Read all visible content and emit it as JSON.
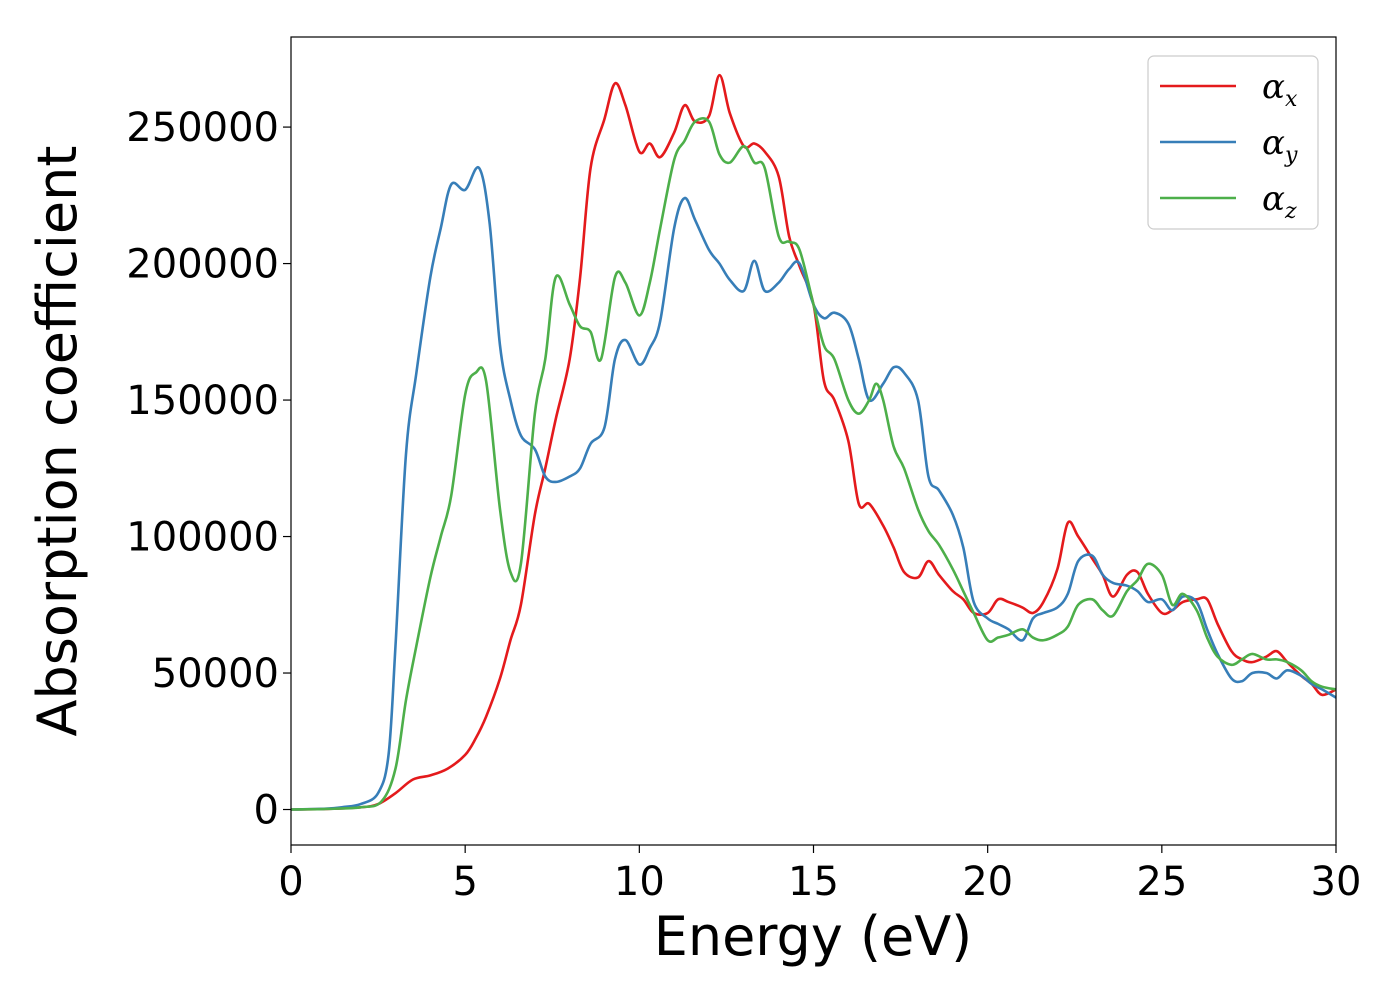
{
  "chart_data": {
    "type": "line",
    "title": "",
    "xlabel": "Energy (eV)",
    "ylabel": "Absorption coefficient",
    "xlim": [
      0,
      30
    ],
    "ylim": [
      -13000,
      283000
    ],
    "xticks": [
      0,
      5,
      10,
      15,
      20,
      25,
      30
    ],
    "yticks": [
      0,
      50000,
      100000,
      150000,
      200000,
      250000
    ],
    "grid": false,
    "legend_position": "top-right",
    "series": [
      {
        "name": "α",
        "subscript": "x",
        "color": "#e41a1c",
        "points": [
          [
            0,
            0
          ],
          [
            1,
            200
          ],
          [
            2,
            800
          ],
          [
            2.5,
            2000
          ],
          [
            3,
            6000
          ],
          [
            3.5,
            11000
          ],
          [
            4,
            12500
          ],
          [
            4.5,
            15000
          ],
          [
            5,
            20000
          ],
          [
            5.3,
            26000
          ],
          [
            5.6,
            34000
          ],
          [
            6,
            48000
          ],
          [
            6.3,
            62000
          ],
          [
            6.6,
            75000
          ],
          [
            7,
            108000
          ],
          [
            7.3,
            125000
          ],
          [
            7.6,
            143000
          ],
          [
            8,
            165000
          ],
          [
            8.3,
            195000
          ],
          [
            8.6,
            235000
          ],
          [
            9,
            253000
          ],
          [
            9.3,
            266000
          ],
          [
            9.6,
            258000
          ],
          [
            10,
            241000
          ],
          [
            10.3,
            244000
          ],
          [
            10.6,
            239000
          ],
          [
            11,
            248000
          ],
          [
            11.3,
            258000
          ],
          [
            11.6,
            252000
          ],
          [
            12,
            254000
          ],
          [
            12.3,
            269000
          ],
          [
            12.6,
            255000
          ],
          [
            13,
            243000
          ],
          [
            13.3,
            244000
          ],
          [
            13.6,
            241000
          ],
          [
            14,
            232000
          ],
          [
            14.3,
            210000
          ],
          [
            14.6,
            199000
          ],
          [
            15,
            185000
          ],
          [
            15.3,
            157000
          ],
          [
            15.6,
            150000
          ],
          [
            16,
            135000
          ],
          [
            16.3,
            112000
          ],
          [
            16.6,
            112000
          ],
          [
            17,
            104000
          ],
          [
            17.3,
            96000
          ],
          [
            17.6,
            87000
          ],
          [
            18,
            85000
          ],
          [
            18.3,
            91000
          ],
          [
            18.6,
            86000
          ],
          [
            19,
            80000
          ],
          [
            19.3,
            77000
          ],
          [
            19.6,
            72000
          ],
          [
            20,
            72000
          ],
          [
            20.3,
            77000
          ],
          [
            20.6,
            76000
          ],
          [
            21,
            74000
          ],
          [
            21.3,
            72000
          ],
          [
            21.6,
            76000
          ],
          [
            22,
            88000
          ],
          [
            22.3,
            105000
          ],
          [
            22.6,
            100000
          ],
          [
            23,
            92000
          ],
          [
            23.3,
            86000
          ],
          [
            23.6,
            78000
          ],
          [
            24,
            86000
          ],
          [
            24.3,
            87000
          ],
          [
            24.6,
            79000
          ],
          [
            25,
            72000
          ],
          [
            25.3,
            73000
          ],
          [
            25.6,
            76000
          ],
          [
            26,
            77000
          ],
          [
            26.3,
            77000
          ],
          [
            26.6,
            68000
          ],
          [
            27,
            58000
          ],
          [
            27.3,
            55000
          ],
          [
            27.6,
            54000
          ],
          [
            28,
            56000
          ],
          [
            28.3,
            58000
          ],
          [
            28.6,
            54000
          ],
          [
            29,
            49000
          ],
          [
            29.3,
            46000
          ],
          [
            29.6,
            42000
          ],
          [
            30,
            44000
          ]
        ]
      },
      {
        "name": "α",
        "subscript": "y",
        "color": "#377eb8",
        "points": [
          [
            0,
            0
          ],
          [
            1,
            300
          ],
          [
            1.5,
            900
          ],
          [
            2,
            2000
          ],
          [
            2.5,
            6000
          ],
          [
            2.8,
            20000
          ],
          [
            3,
            60000
          ],
          [
            3.3,
            130000
          ],
          [
            3.6,
            160000
          ],
          [
            4,
            195000
          ],
          [
            4.3,
            213000
          ],
          [
            4.6,
            229000
          ],
          [
            5,
            227000
          ],
          [
            5.4,
            235000
          ],
          [
            5.7,
            215000
          ],
          [
            6,
            170000
          ],
          [
            6.3,
            150000
          ],
          [
            6.6,
            137000
          ],
          [
            7,
            132000
          ],
          [
            7.3,
            122000
          ],
          [
            7.6,
            120000
          ],
          [
            8,
            122000
          ],
          [
            8.3,
            125000
          ],
          [
            8.6,
            134000
          ],
          [
            9,
            140000
          ],
          [
            9.3,
            165000
          ],
          [
            9.6,
            172000
          ],
          [
            10,
            163000
          ],
          [
            10.3,
            169000
          ],
          [
            10.6,
            179000
          ],
          [
            11,
            213000
          ],
          [
            11.3,
            224000
          ],
          [
            11.6,
            216000
          ],
          [
            12,
            205000
          ],
          [
            12.3,
            200000
          ],
          [
            12.6,
            194000
          ],
          [
            13,
            190000
          ],
          [
            13.3,
            201000
          ],
          [
            13.6,
            190000
          ],
          [
            14,
            193000
          ],
          [
            14.3,
            198000
          ],
          [
            14.6,
            200000
          ],
          [
            15,
            185000
          ],
          [
            15.3,
            180000
          ],
          [
            15.6,
            182000
          ],
          [
            16,
            178000
          ],
          [
            16.3,
            165000
          ],
          [
            16.6,
            150000
          ],
          [
            17,
            156000
          ],
          [
            17.3,
            162000
          ],
          [
            17.6,
            160000
          ],
          [
            18,
            150000
          ],
          [
            18.3,
            122000
          ],
          [
            18.6,
            117000
          ],
          [
            19,
            108000
          ],
          [
            19.3,
            96000
          ],
          [
            19.6,
            76000
          ],
          [
            20,
            70000
          ],
          [
            20.3,
            68000
          ],
          [
            20.6,
            66000
          ],
          [
            21,
            62000
          ],
          [
            21.3,
            70000
          ],
          [
            21.6,
            72000
          ],
          [
            22,
            74000
          ],
          [
            22.3,
            79000
          ],
          [
            22.6,
            91000
          ],
          [
            23,
            93000
          ],
          [
            23.3,
            86000
          ],
          [
            23.6,
            83000
          ],
          [
            24,
            82000
          ],
          [
            24.3,
            80000
          ],
          [
            24.6,
            76000
          ],
          [
            25,
            77000
          ],
          [
            25.3,
            73000
          ],
          [
            25.6,
            78000
          ],
          [
            26,
            76000
          ],
          [
            26.3,
            66000
          ],
          [
            26.6,
            57000
          ],
          [
            27,
            48000
          ],
          [
            27.3,
            47000
          ],
          [
            27.6,
            50000
          ],
          [
            28,
            50000
          ],
          [
            28.3,
            48000
          ],
          [
            28.6,
            51000
          ],
          [
            29,
            49000
          ],
          [
            29.3,
            46000
          ],
          [
            29.6,
            44000
          ],
          [
            30,
            41000
          ]
        ]
      },
      {
        "name": "α",
        "subscript": "z",
        "color": "#4daf4a",
        "points": [
          [
            0,
            0
          ],
          [
            1,
            200
          ],
          [
            2,
            800
          ],
          [
            2.6,
            3000
          ],
          [
            3,
            15000
          ],
          [
            3.3,
            40000
          ],
          [
            3.6,
            60000
          ],
          [
            4,
            85000
          ],
          [
            4.3,
            100000
          ],
          [
            4.6,
            115000
          ],
          [
            5,
            152000
          ],
          [
            5.3,
            160000
          ],
          [
            5.6,
            157000
          ],
          [
            6,
            110000
          ],
          [
            6.3,
            87000
          ],
          [
            6.6,
            90000
          ],
          [
            7,
            145000
          ],
          [
            7.3,
            165000
          ],
          [
            7.6,
            195000
          ],
          [
            8,
            185000
          ],
          [
            8.3,
            177000
          ],
          [
            8.6,
            175000
          ],
          [
            8.9,
            165000
          ],
          [
            9.3,
            195000
          ],
          [
            9.6,
            193000
          ],
          [
            10,
            181000
          ],
          [
            10.3,
            193000
          ],
          [
            10.6,
            213000
          ],
          [
            11,
            238000
          ],
          [
            11.3,
            245000
          ],
          [
            11.6,
            252000
          ],
          [
            12,
            252000
          ],
          [
            12.3,
            240000
          ],
          [
            12.6,
            237000
          ],
          [
            13,
            243000
          ],
          [
            13.3,
            237000
          ],
          [
            13.6,
            235000
          ],
          [
            14,
            210000
          ],
          [
            14.3,
            208000
          ],
          [
            14.6,
            205000
          ],
          [
            15,
            185000
          ],
          [
            15.3,
            170000
          ],
          [
            15.6,
            165000
          ],
          [
            16,
            150000
          ],
          [
            16.3,
            145000
          ],
          [
            16.6,
            150000
          ],
          [
            16.8,
            156000
          ],
          [
            17,
            150000
          ],
          [
            17.3,
            133000
          ],
          [
            17.6,
            125000
          ],
          [
            18,
            110000
          ],
          [
            18.3,
            102000
          ],
          [
            18.6,
            97000
          ],
          [
            19,
            88000
          ],
          [
            19.3,
            80000
          ],
          [
            19.6,
            72000
          ],
          [
            20,
            62000
          ],
          [
            20.3,
            63000
          ],
          [
            20.6,
            64000
          ],
          [
            21,
            66000
          ],
          [
            21.3,
            63000
          ],
          [
            21.6,
            62000
          ],
          [
            22,
            64000
          ],
          [
            22.3,
            67000
          ],
          [
            22.6,
            75000
          ],
          [
            23,
            77000
          ],
          [
            23.3,
            73000
          ],
          [
            23.6,
            71000
          ],
          [
            24,
            80000
          ],
          [
            24.3,
            84000
          ],
          [
            24.6,
            90000
          ],
          [
            25,
            86000
          ],
          [
            25.3,
            75000
          ],
          [
            25.6,
            79000
          ],
          [
            26,
            73000
          ],
          [
            26.3,
            63000
          ],
          [
            26.6,
            56000
          ],
          [
            27,
            53000
          ],
          [
            27.3,
            55000
          ],
          [
            27.6,
            57000
          ],
          [
            28,
            55000
          ],
          [
            28.3,
            55000
          ],
          [
            28.6,
            54000
          ],
          [
            29,
            51000
          ],
          [
            29.3,
            47000
          ],
          [
            29.6,
            45000
          ],
          [
            30,
            44000
          ]
        ]
      }
    ]
  }
}
